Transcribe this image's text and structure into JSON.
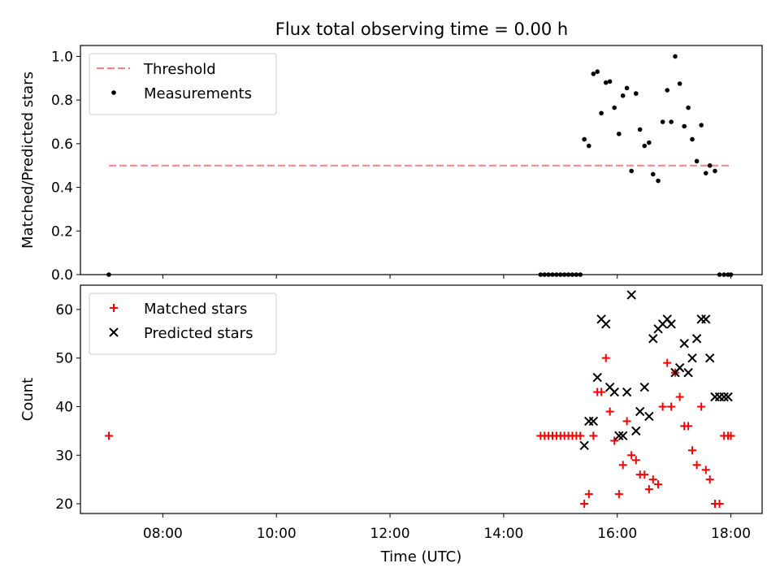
{
  "title": "Flux total observing time = 0.00 h",
  "chart_data": [
    {
      "type": "scatter",
      "panel": "top",
      "ylabel": "Matched/Predicted stars",
      "xlim": [
        6.55,
        18.55
      ],
      "ylim": [
        0,
        1.05
      ],
      "yticks": [
        0.0,
        0.2,
        0.4,
        0.6,
        0.8,
        1.0
      ],
      "ytick_labels": [
        "0.0",
        "0.2",
        "0.4",
        "0.6",
        "0.8",
        "1.0"
      ],
      "legend_position": "upper-left",
      "threshold": {
        "name": "Threshold",
        "value": 0.5,
        "x_range": [
          7.05,
          18.0
        ],
        "color": "#ff7f7f"
      },
      "series": [
        {
          "name": "Measurements",
          "color": "#000000",
          "x": [
            7.05,
            14.65,
            14.72,
            14.79,
            14.86,
            14.93,
            15.0,
            15.07,
            15.14,
            15.21,
            15.28,
            15.35,
            15.42,
            15.5,
            15.58,
            15.65,
            15.72,
            15.8,
            15.87,
            15.95,
            16.03,
            16.1,
            16.17,
            16.25,
            16.33,
            16.4,
            16.48,
            16.56,
            16.63,
            16.72,
            16.8,
            16.88,
            16.95,
            17.02,
            17.1,
            17.18,
            17.25,
            17.32,
            17.4,
            17.48,
            17.56,
            17.63,
            17.72,
            17.8,
            17.88,
            17.95,
            18.0
          ],
          "y": [
            0.0,
            0.0,
            0.0,
            0.0,
            0.0,
            0.0,
            0.0,
            0.0,
            0.0,
            0.0,
            0.0,
            0.0,
            0.62,
            0.59,
            0.92,
            0.93,
            0.74,
            0.88,
            0.885,
            0.765,
            0.645,
            0.82,
            0.855,
            0.475,
            0.83,
            0.665,
            0.59,
            0.605,
            0.46,
            0.43,
            0.7,
            0.845,
            0.7,
            1.0,
            0.875,
            0.68,
            0.765,
            0.62,
            0.52,
            0.685,
            0.465,
            0.5,
            0.475,
            0.0,
            0.0,
            0.0,
            0.0
          ]
        }
      ]
    },
    {
      "type": "scatter",
      "panel": "bottom",
      "xlabel": "Time (UTC)",
      "ylabel": "Count",
      "xlim": [
        6.55,
        18.55
      ],
      "ylim": [
        18,
        65
      ],
      "xticks": [
        8,
        10,
        12,
        14,
        16,
        18
      ],
      "xtick_labels": [
        "08:00",
        "10:00",
        "12:00",
        "14:00",
        "16:00",
        "18:00"
      ],
      "yticks": [
        20,
        30,
        40,
        50,
        60
      ],
      "ytick_labels": [
        "20",
        "30",
        "40",
        "50",
        "60"
      ],
      "legend_position": "upper-left",
      "series": [
        {
          "name": "Matched stars",
          "marker": "plus",
          "color": "#ff0000",
          "x": [
            7.05,
            14.65,
            14.72,
            14.79,
            14.86,
            14.93,
            15.0,
            15.07,
            15.14,
            15.21,
            15.28,
            15.35,
            15.42,
            15.5,
            15.58,
            15.65,
            15.72,
            15.8,
            15.87,
            15.95,
            16.03,
            16.1,
            16.17,
            16.25,
            16.33,
            16.4,
            16.48,
            16.56,
            16.63,
            16.72,
            16.8,
            16.88,
            16.95,
            17.02,
            17.1,
            17.18,
            17.25,
            17.32,
            17.4,
            17.48,
            17.56,
            17.63,
            17.72,
            17.8,
            17.88,
            17.95,
            18.0
          ],
          "y": [
            34,
            34,
            34,
            34,
            34,
            34,
            34,
            34,
            34,
            34,
            34,
            34,
            20,
            22,
            34,
            43,
            43,
            50,
            39,
            33,
            22,
            28,
            37,
            30,
            29,
            26,
            26,
            23,
            25,
            24,
            40,
            49,
            40,
            47,
            42,
            36,
            36,
            31,
            28,
            40,
            27,
            25,
            20,
            20,
            34,
            34,
            34
          ]
        },
        {
          "name": "Predicted stars",
          "marker": "x",
          "color": "#000000",
          "x": [
            15.42,
            15.5,
            15.58,
            15.65,
            15.72,
            15.8,
            15.87,
            15.95,
            16.03,
            16.1,
            16.17,
            16.25,
            16.33,
            16.4,
            16.48,
            16.56,
            16.63,
            16.72,
            16.8,
            16.88,
            16.95,
            17.02,
            17.1,
            17.18,
            17.25,
            17.32,
            17.4,
            17.48,
            17.56,
            17.63,
            17.72,
            17.8,
            17.88,
            17.95
          ],
          "y": [
            32,
            37,
            37,
            46,
            58,
            57,
            44,
            43,
            34,
            34,
            43,
            63,
            35,
            39,
            44,
            38,
            54,
            56,
            57,
            58,
            57,
            47,
            48,
            53,
            47,
            50,
            54,
            58,
            58,
            50,
            42,
            42,
            42,
            42
          ]
        }
      ]
    }
  ]
}
